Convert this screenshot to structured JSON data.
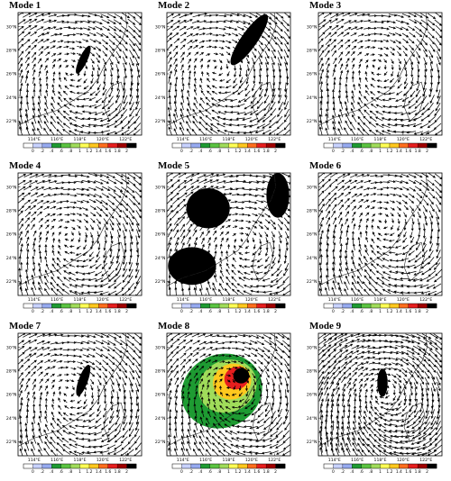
{
  "figure": {
    "lon_ticks": [
      "114°E",
      "116°E",
      "118°E",
      "120°E",
      "122°E"
    ],
    "lat_ticks": [
      "30°N",
      "28°N",
      "26°N",
      "24°N",
      "22°N"
    ],
    "colorbar_levels": [
      "0",
      ".2",
      ".4",
      ".6",
      ".8",
      "1",
      "1.2",
      "1.4",
      "1.6",
      "1.8",
      "2"
    ],
    "colorbar_colors": [
      "#ffffff",
      "#c8d2ff",
      "#96aaf0",
      "#1e9b32",
      "#5ac341",
      "#a0dc5a",
      "#ffff55",
      "#ffc81e",
      "#ff6e1e",
      "#e61e1e",
      "#a00000",
      "#000000"
    ]
  },
  "chart_data": [
    {
      "type": "heatmap",
      "title": "Mode 1",
      "fields": [
        {
          "kind": "blob",
          "lon": 118.3,
          "lat": 27.2,
          "rx": 0.35,
          "ry": 1.3,
          "rot": 25,
          "level": "2"
        }
      ],
      "vortex": {
        "lon": 117.0,
        "lat": 26.5
      }
    },
    {
      "type": "heatmap",
      "title": "Mode 2",
      "fields": [
        {
          "kind": "blob",
          "lon": 119.8,
          "lat": 28.9,
          "rx": 0.7,
          "ry": 2.6,
          "rot": 35,
          "level": "2"
        }
      ],
      "vortex": {
        "lon": 116.6,
        "lat": 26.8
      }
    },
    {
      "type": "heatmap",
      "title": "Mode 3",
      "fields": [],
      "vortex": {
        "lon": 117.5,
        "lat": 26.8
      }
    },
    {
      "type": "heatmap",
      "title": "Mode 4",
      "fields": [],
      "vortex": {
        "lon": 116.8,
        "lat": 26.0
      }
    },
    {
      "type": "heatmap",
      "title": "Mode 5",
      "fields": [
        {
          "kind": "blob",
          "lon": 116.2,
          "lat": 28.2,
          "rx": 1.9,
          "ry": 1.7,
          "rot": 0,
          "level": "2"
        },
        {
          "kind": "blob",
          "lon": 114.8,
          "lat": 23.3,
          "rx": 2.1,
          "ry": 1.6,
          "rot": 0,
          "level": "2"
        },
        {
          "kind": "blob",
          "lon": 122.3,
          "lat": 29.3,
          "rx": 1.0,
          "ry": 1.9,
          "rot": 0,
          "level": "2"
        }
      ],
      "vortex": {
        "lon": 119.0,
        "lat": 25.5
      }
    },
    {
      "type": "heatmap",
      "title": "Mode 6",
      "fields": [],
      "vortex": {
        "lon": 118.0,
        "lat": 27.2
      }
    },
    {
      "type": "heatmap",
      "title": "Mode 7",
      "fields": [
        {
          "kind": "blob",
          "lon": 118.3,
          "lat": 27.2,
          "rx": 0.4,
          "ry": 1.4,
          "rot": 20,
          "level": "2"
        }
      ],
      "vortex": {
        "lon": 116.8,
        "lat": 26.5
      }
    },
    {
      "type": "heatmap",
      "title": "Mode 8",
      "fields": [
        {
          "kind": "blob",
          "lon": 117.4,
          "lat": 26.3,
          "rx": 3.6,
          "ry": 3.1,
          "rot": -25,
          "level": ".4"
        },
        {
          "kind": "blob",
          "lon": 117.9,
          "lat": 26.7,
          "rx": 2.6,
          "ry": 2.2,
          "rot": -25,
          "level": ".8"
        },
        {
          "kind": "blob",
          "lon": 118.3,
          "lat": 27.1,
          "rx": 1.7,
          "ry": 1.5,
          "rot": -25,
          "level": "1.2"
        },
        {
          "kind": "blob",
          "lon": 118.7,
          "lat": 27.4,
          "rx": 1.1,
          "ry": 0.95,
          "rot": -25,
          "level": "1.6"
        },
        {
          "kind": "blob",
          "lon": 119.1,
          "lat": 27.6,
          "rx": 0.7,
          "ry": 0.65,
          "rot": -25,
          "level": "2"
        }
      ],
      "vortex": {
        "lon": 117.8,
        "lat": 27.0
      }
    },
    {
      "type": "heatmap",
      "title": "Mode 9",
      "fields": [
        {
          "kind": "blob",
          "lon": 118.2,
          "lat": 27.0,
          "rx": 0.45,
          "ry": 1.2,
          "rot": 0,
          "level": "2"
        }
      ],
      "vortex": {
        "lon": 118.0,
        "lat": 26.5
      }
    }
  ]
}
